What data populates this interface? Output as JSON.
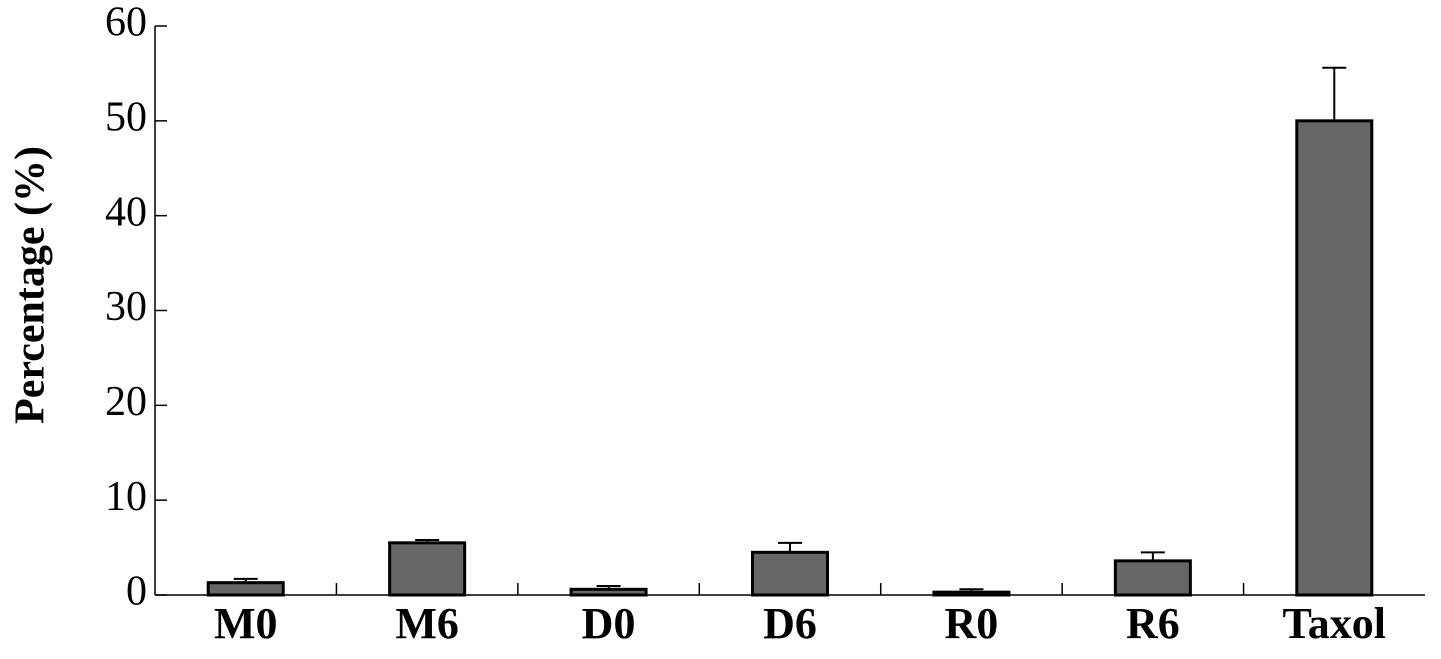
{
  "chart_data": {
    "type": "bar",
    "y_label": "Percentage (%)",
    "categories": [
      "M0",
      "M6",
      "D0",
      "D6",
      "R0",
      "R6",
      "Taxol"
    ],
    "values": [
      1.3,
      5.5,
      0.6,
      4.5,
      0.3,
      3.6,
      50
    ],
    "errors": [
      0.4,
      0.3,
      0.35,
      1.0,
      0.3,
      0.9,
      5.6
    ],
    "color": "#666666",
    "ylim": [
      0,
      60
    ],
    "yticks": [
      0,
      10,
      20,
      30,
      40,
      50,
      60
    ],
    "grid": false
  }
}
